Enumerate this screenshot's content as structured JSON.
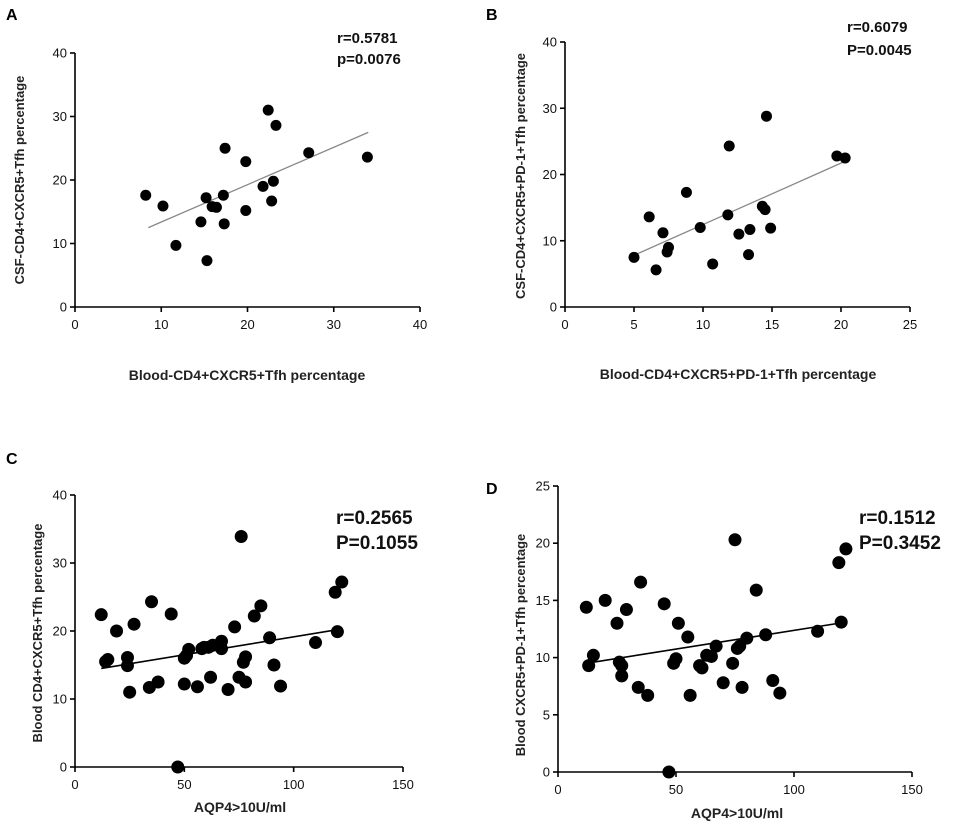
{
  "chart_data": [
    {
      "type": "scatter",
      "panel_label": "A",
      "xlabel": "Blood-CD4+CXCR5+Tfh percentage",
      "ylabel": "CSF-CD4+CXCR5+Tfh percentage",
      "xlim": [
        0,
        40
      ],
      "ylim": [
        0,
        40
      ],
      "xticks": [
        0,
        10,
        20,
        30,
        40
      ],
      "yticks": [
        0,
        10,
        20,
        30,
        40
      ],
      "stats": [
        "r=0.5781",
        "p=0.0076"
      ],
      "fit": {
        "x": [
          8.5,
          34
        ],
        "y": [
          12.5,
          27.5
        ]
      },
      "points": [
        [
          8.2,
          17.6
        ],
        [
          10.2,
          15.9
        ],
        [
          11.7,
          9.7
        ],
        [
          14.6,
          13.4
        ],
        [
          15.2,
          17.2
        ],
        [
          15.3,
          7.3
        ],
        [
          15.9,
          15.8
        ],
        [
          16.4,
          15.7
        ],
        [
          17.3,
          13.1
        ],
        [
          17.2,
          17.6
        ],
        [
          17.4,
          25.0
        ],
        [
          19.8,
          22.9
        ],
        [
          19.8,
          15.2
        ],
        [
          21.8,
          19.0
        ],
        [
          22.4,
          31.0
        ],
        [
          22.8,
          16.7
        ],
        [
          23.0,
          19.8
        ],
        [
          23.3,
          28.6
        ],
        [
          27.1,
          24.3
        ],
        [
          33.9,
          23.6
        ]
      ]
    },
    {
      "type": "scatter",
      "panel_label": "B",
      "xlabel": "Blood-CD4+CXCR5+PD-1+Tfh percentage",
      "ylabel": "CSF-CD4+CXCR5+PD-1+Tfh percentage",
      "xlim": [
        0,
        25
      ],
      "ylim": [
        0,
        40
      ],
      "xticks": [
        0,
        5,
        10,
        15,
        20,
        25
      ],
      "yticks": [
        0,
        10,
        20,
        30,
        40
      ],
      "stats": [
        "r=0.6079",
        "P=0.0045"
      ],
      "fit": {
        "x": [
          5,
          20.3
        ],
        "y": [
          7.8,
          22.0
        ]
      },
      "points": [
        [
          5.0,
          7.5
        ],
        [
          6.1,
          13.6
        ],
        [
          6.6,
          5.6
        ],
        [
          7.1,
          11.2
        ],
        [
          7.4,
          8.3
        ],
        [
          7.5,
          9.0
        ],
        [
          8.8,
          17.3
        ],
        [
          9.8,
          12.0
        ],
        [
          10.7,
          6.5
        ],
        [
          11.8,
          13.9
        ],
        [
          11.9,
          24.3
        ],
        [
          12.6,
          11.0
        ],
        [
          13.3,
          7.9
        ],
        [
          13.4,
          11.7
        ],
        [
          14.3,
          15.2
        ],
        [
          14.5,
          14.7
        ],
        [
          14.6,
          28.8
        ],
        [
          14.9,
          11.9
        ],
        [
          19.7,
          22.8
        ],
        [
          20.3,
          22.5
        ]
      ]
    },
    {
      "type": "scatter",
      "panel_label": "C",
      "xlabel": "AQP4>10U/ml",
      "ylabel": "Blood CD4+CXCR5+Tfh percentage",
      "xlim": [
        0,
        150
      ],
      "ylim": [
        0,
        40
      ],
      "xticks": [
        0,
        50,
        100,
        150
      ],
      "yticks": [
        0,
        10,
        20,
        30,
        40
      ],
      "stats": [
        "r=0.2565",
        "P=0.1055"
      ],
      "fit": {
        "x": [
          12,
          122
        ],
        "y": [
          14.5,
          20.3
        ]
      },
      "points": [
        [
          12,
          22.4
        ],
        [
          14,
          15.5
        ],
        [
          15,
          15.8
        ],
        [
          19,
          20.0
        ],
        [
          24,
          16.1
        ],
        [
          24,
          14.9
        ],
        [
          25,
          11.0
        ],
        [
          27,
          21.0
        ],
        [
          34,
          11.7
        ],
        [
          35,
          24.3
        ],
        [
          38,
          12.5
        ],
        [
          44,
          22.5
        ],
        [
          47,
          0
        ],
        [
          50,
          12.2
        ],
        [
          50,
          16.0
        ],
        [
          51,
          16.4
        ],
        [
          52,
          17.3
        ],
        [
          56,
          11.8
        ],
        [
          58,
          17.4
        ],
        [
          59,
          17.6
        ],
        [
          61,
          17.6
        ],
        [
          62,
          13.2
        ],
        [
          63,
          17.9
        ],
        [
          67,
          17.4
        ],
        [
          67,
          18.5
        ],
        [
          70,
          11.4
        ],
        [
          73,
          20.6
        ],
        [
          75,
          13.2
        ],
        [
          76,
          33.9
        ],
        [
          77,
          15.4
        ],
        [
          78,
          16.2
        ],
        [
          78,
          12.5
        ],
        [
          82,
          22.2
        ],
        [
          85,
          23.7
        ],
        [
          89,
          19.0
        ],
        [
          91,
          15.0
        ],
        [
          94,
          11.9
        ],
        [
          110,
          18.3
        ],
        [
          119,
          25.7
        ],
        [
          120,
          19.9
        ],
        [
          122,
          27.2
        ]
      ]
    },
    {
      "type": "scatter",
      "panel_label": "D",
      "xlabel": "AQP4>10U/ml",
      "ylabel": "Blood CXCR5+PD-1+Tfh percentage",
      "xlim": [
        0,
        150
      ],
      "ylim": [
        0,
        25
      ],
      "xticks": [
        0,
        50,
        100,
        150
      ],
      "yticks": [
        0,
        5,
        10,
        15,
        20,
        25
      ],
      "stats": [
        "r=0.1512",
        "P=0.3452"
      ],
      "fit": {
        "x": [
          12,
          122
        ],
        "y": [
          9.5,
          13.1
        ]
      },
      "points": [
        [
          12,
          14.4
        ],
        [
          13,
          9.3
        ],
        [
          15,
          10.2
        ],
        [
          20,
          15.0
        ],
        [
          25,
          13.0
        ],
        [
          26,
          9.6
        ],
        [
          27,
          8.4
        ],
        [
          27,
          9.3
        ],
        [
          29,
          14.2
        ],
        [
          34,
          7.4
        ],
        [
          35,
          16.6
        ],
        [
          38,
          6.7
        ],
        [
          45,
          14.7
        ],
        [
          47,
          0
        ],
        [
          49,
          9.5
        ],
        [
          50,
          9.9
        ],
        [
          51,
          13.0
        ],
        [
          55,
          11.8
        ],
        [
          56,
          6.7
        ],
        [
          60,
          9.3
        ],
        [
          61,
          9.1
        ],
        [
          63,
          10.2
        ],
        [
          65,
          10.1
        ],
        [
          67,
          11.0
        ],
        [
          70,
          7.8
        ],
        [
          74,
          9.5
        ],
        [
          75,
          20.3
        ],
        [
          76,
          10.8
        ],
        [
          77,
          11.0
        ],
        [
          78,
          7.4
        ],
        [
          80,
          11.7
        ],
        [
          84,
          15.9
        ],
        [
          88,
          12.0
        ],
        [
          91,
          8.0
        ],
        [
          94,
          6.9
        ],
        [
          110,
          12.3
        ],
        [
          119,
          18.3
        ],
        [
          120,
          13.1
        ],
        [
          122,
          19.5
        ]
      ]
    }
  ]
}
